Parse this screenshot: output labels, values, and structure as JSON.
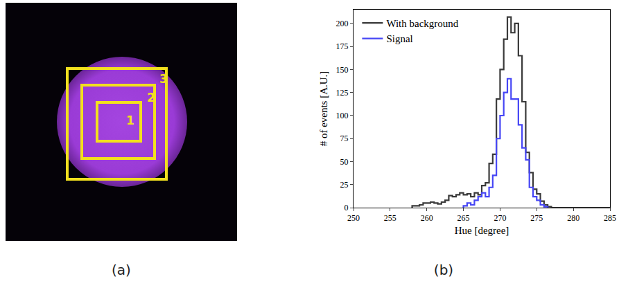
{
  "chart_data": {
    "type": "histogram",
    "x_label": "Hue [degree]",
    "y_label": "# of events [A.U.]",
    "xlim": [
      250,
      285
    ],
    "xticks": [
      250,
      255,
      260,
      265,
      270,
      275,
      280,
      285
    ],
    "ylim": [
      0,
      215
    ],
    "yticks": [
      0,
      25,
      50,
      75,
      100,
      125,
      150,
      175,
      200
    ],
    "legend": "upper left",
    "series": [
      {
        "name": "With background",
        "color": "#3a3a3a",
        "bins": [
          258,
          258.5,
          259,
          259.5,
          260,
          260.5,
          261,
          261.5,
          262,
          262.5,
          263,
          263.5,
          264,
          264.5,
          265,
          265.5,
          266,
          266.5,
          267,
          267.5,
          268,
          268.5,
          269,
          269.5,
          270,
          270.5,
          271,
          271.5,
          272,
          272.5,
          273,
          273.5,
          274,
          274.5,
          275,
          275.5,
          276,
          276.5,
          277,
          285
        ],
        "values": [
          2,
          2,
          3,
          5,
          5,
          6,
          5,
          4,
          6,
          8,
          13,
          12,
          14,
          16,
          14,
          15,
          12,
          16,
          14,
          24,
          27,
          48,
          58,
          118,
          150,
          183,
          207,
          190,
          200,
          165,
          115,
          60,
          38,
          20,
          15,
          7,
          3,
          1,
          0
        ]
      },
      {
        "name": "Signal",
        "color": "#4646f5",
        "bins": [
          265,
          265.5,
          266,
          266.5,
          267,
          267.5,
          268,
          268.5,
          269,
          269.5,
          270,
          270.5,
          271,
          271.5,
          272,
          272.5,
          273,
          273.5,
          274,
          274.5,
          275,
          275.5,
          276,
          276.5
        ],
        "values": [
          2,
          5,
          3,
          8,
          12,
          16,
          12,
          22,
          35,
          75,
          100,
          125,
          140,
          118,
          118,
          90,
          65,
          52,
          22,
          12,
          8,
          3,
          1
        ]
      }
    ]
  },
  "panel_a": {
    "label": "(a)",
    "box_labels": [
      "1",
      "2",
      "3"
    ]
  },
  "panel_b": {
    "label": "(b)"
  }
}
